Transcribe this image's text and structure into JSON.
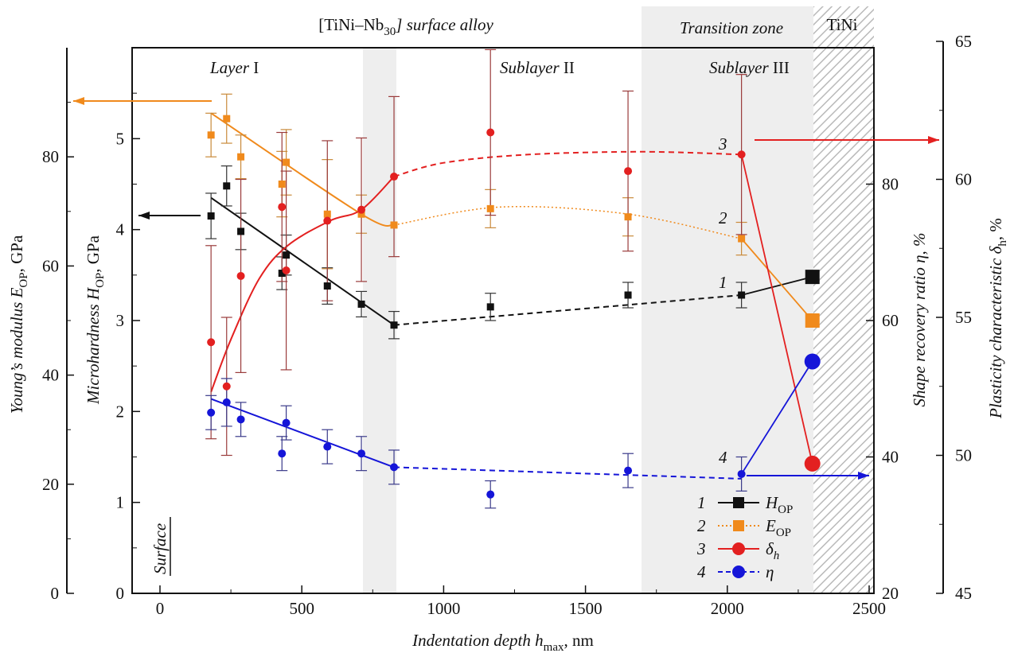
{
  "chart_data": {
    "type": "scatter",
    "xlabel": "Indentation depth h",
    "xlabel_sub": "max",
    "xlabel_unit": ", nm",
    "x_ticks": [
      "0",
      "500",
      "1000",
      "1500",
      "2000",
      "2500"
    ],
    "xlim": [
      -100,
      2500
    ],
    "axes": {
      "young": {
        "label_a": "Young’s modulus E",
        "label_sub": "OP",
        "label_b": ", GPa",
        "ticks": [
          "0",
          "20",
          "40",
          "60",
          "80"
        ],
        "ylim": [
          0,
          100
        ]
      },
      "micro": {
        "label_a": "Microhardness H",
        "label_sub": "OP",
        "label_b": ", GPa",
        "ticks": [
          "0",
          "1",
          "2",
          "3",
          "4",
          "5"
        ],
        "ylim": [
          0,
          6
        ]
      },
      "srr": {
        "label": "Shape recovery ratio η, %",
        "ticks": [
          "20",
          "40",
          "60",
          "80"
        ],
        "ylim": [
          20,
          100
        ]
      },
      "plast": {
        "label_a": "Plasticity characteristic δ",
        "label_sub": "h",
        "label_b": ", %",
        "ticks": [
          "45",
          "50",
          "55",
          "60",
          "65"
        ],
        "ylim": [
          45,
          65
        ]
      }
    },
    "regions": {
      "top_left_a": "[TiNi–Nb",
      "top_left_sub": "30",
      "top_left_b": "] surface alloy",
      "transition": "Transition zone",
      "tini": "TiNi",
      "layer1_a": "Layer",
      "layer1_b": " I",
      "sublayer2_a": "Sublayer",
      "sublayer2_b": " II",
      "sublayer3_a": "Sublayer",
      "sublayer3_b": " III",
      "surface": "Surface"
    },
    "curve_numbers": [
      "1",
      "2",
      "3",
      "4"
    ],
    "series": [
      {
        "key": "H",
        "axis": "micro",
        "color": "#111111",
        "marker": "square",
        "points": [
          {
            "x": 180,
            "y": 4.15,
            "err": 0.25
          },
          {
            "x": 235,
            "y": 4.48,
            "err": 0.22
          },
          {
            "x": 285,
            "y": 3.98,
            "err": 0.2
          },
          {
            "x": 430,
            "y": 3.52,
            "err": 0.18
          },
          {
            "x": 445,
            "y": 3.72,
            "err": 0.22
          },
          {
            "x": 590,
            "y": 3.38,
            "err": 0.2
          },
          {
            "x": 710,
            "y": 3.18,
            "err": 0.14
          },
          {
            "x": 825,
            "y": 2.95,
            "err": 0.15
          },
          {
            "x": 1165,
            "y": 3.15,
            "err": 0.15
          },
          {
            "x": 1650,
            "y": 3.28,
            "err": 0.14
          },
          {
            "x": 2050,
            "y": 3.28,
            "err": 0.14
          },
          {
            "x": 2300,
            "y": 3.48,
            "err": 0,
            "big": true
          }
        ],
        "fit_solid": [
          [
            180,
            4.35
          ],
          [
            825,
            2.95
          ]
        ],
        "fit_dashed": [
          [
            825,
            2.95
          ],
          [
            2050,
            3.28
          ]
        ],
        "link": [
          [
            2050,
            3.28
          ],
          [
            2300,
            3.48
          ]
        ]
      },
      {
        "key": "E",
        "axis": "young",
        "color": "#f08a1c",
        "marker": "square",
        "points": [
          {
            "x": 180,
            "y": 84,
            "err": 4
          },
          {
            "x": 235,
            "y": 87,
            "err": 4.5
          },
          {
            "x": 285,
            "y": 80,
            "err": 4
          },
          {
            "x": 430,
            "y": 75,
            "err": 6
          },
          {
            "x": 445,
            "y": 79,
            "err": 6
          },
          {
            "x": 590,
            "y": 69.5,
            "err": 10
          },
          {
            "x": 710,
            "y": 69.5,
            "err": 3.5
          },
          {
            "x": 825,
            "y": 67.5,
            "err": 0
          },
          {
            "x": 1165,
            "y": 70.5,
            "err": 3.5
          },
          {
            "x": 1650,
            "y": 69,
            "err": 3.5
          },
          {
            "x": 2050,
            "y": 65,
            "err": 3
          },
          {
            "x": 2300,
            "y": 50,
            "err": 0,
            "big": true
          }
        ],
        "fit_solid": [
          [
            180,
            88
          ],
          [
            710,
            69.5
          ],
          [
            825,
            67.5
          ]
        ],
        "fit_dotted": [
          [
            825,
            67.5
          ],
          [
            1200,
            70.8
          ],
          [
            1650,
            69.5
          ],
          [
            2050,
            65
          ]
        ],
        "link": [
          [
            2050,
            65
          ],
          [
            2300,
            50
          ]
        ]
      },
      {
        "key": "delta",
        "axis": "plast",
        "color": "#e32020",
        "marker": "circle",
        "points": [
          {
            "x": 180,
            "y": 54.1,
            "err": 3.5
          },
          {
            "x": 235,
            "y": 52.5,
            "err": 2.5
          },
          {
            "x": 285,
            "y": 56.5,
            "err": 3.5
          },
          {
            "x": 430,
            "y": 59.0,
            "err": 2.7
          },
          {
            "x": 445,
            "y": 56.7,
            "err": 3.6
          },
          {
            "x": 590,
            "y": 58.5,
            "err": 2.9
          },
          {
            "x": 710,
            "y": 58.9,
            "err": 2.6
          },
          {
            "x": 825,
            "y": 60.1,
            "err": 2.9
          },
          {
            "x": 1165,
            "y": 61.7,
            "err": 3.0
          },
          {
            "x": 1650,
            "y": 60.3,
            "err": 2.9
          },
          {
            "x": 2050,
            "y": 60.9,
            "err": 2.9
          },
          {
            "x": 2300,
            "y": 49.7,
            "err": 0,
            "big": true
          }
        ],
        "fit_solid": [
          [
            180,
            52.3
          ],
          [
            250,
            54.2
          ],
          [
            350,
            56.4
          ],
          [
            450,
            57.6
          ],
          [
            600,
            58.5
          ],
          [
            710,
            58.9
          ],
          [
            825,
            60.1
          ]
        ],
        "fit_dashed": [
          [
            825,
            60.1
          ],
          [
            1000,
            60.6
          ],
          [
            1300,
            60.9
          ],
          [
            1700,
            61.0
          ],
          [
            2050,
            60.9
          ]
        ],
        "link": [
          [
            2050,
            60.9
          ],
          [
            2300,
            49.7
          ]
        ]
      },
      {
        "key": "eta",
        "axis": "srr",
        "color": "#1515d8",
        "marker": "circle",
        "points": [
          {
            "x": 180,
            "y": 46.5,
            "err": 2.5
          },
          {
            "x": 235,
            "y": 48.0,
            "err": 3.5
          },
          {
            "x": 285,
            "y": 45.5,
            "err": 2.5
          },
          {
            "x": 430,
            "y": 40.5,
            "err": 2.5
          },
          {
            "x": 445,
            "y": 45.0,
            "err": 2.5
          },
          {
            "x": 590,
            "y": 41.5,
            "err": 2.5
          },
          {
            "x": 710,
            "y": 40.5,
            "err": 2.5
          },
          {
            "x": 825,
            "y": 38.5,
            "err": 2.5
          },
          {
            "x": 1165,
            "y": 34.5,
            "err": 2.0
          },
          {
            "x": 1650,
            "y": 38.0,
            "err": 2.5
          },
          {
            "x": 2050,
            "y": 37.5,
            "err": 2.5
          },
          {
            "x": 2300,
            "y": 54.0,
            "err": 0,
            "big": true
          }
        ],
        "fit_solid": [
          [
            180,
            48.5
          ],
          [
            825,
            38.5
          ]
        ],
        "fit_dashed": [
          [
            825,
            38.5
          ],
          [
            2050,
            36.8
          ]
        ],
        "link": [
          [
            2050,
            37.5
          ],
          [
            2300,
            54.0
          ]
        ]
      }
    ],
    "legend": [
      {
        "num": "1",
        "a": "H",
        "sub": "OP",
        "key": "H"
      },
      {
        "num": "2",
        "a": "E",
        "sub": "OP",
        "key": "E"
      },
      {
        "num": "3",
        "a": "δ",
        "sub": "h",
        "key": "delta"
      },
      {
        "num": "4",
        "a": "η",
        "sub": "",
        "key": "eta"
      }
    ],
    "arrow_colors": {
      "H": "#111111",
      "E": "#f08a1c",
      "delta": "#e32020",
      "eta": "#1515d8"
    }
  }
}
